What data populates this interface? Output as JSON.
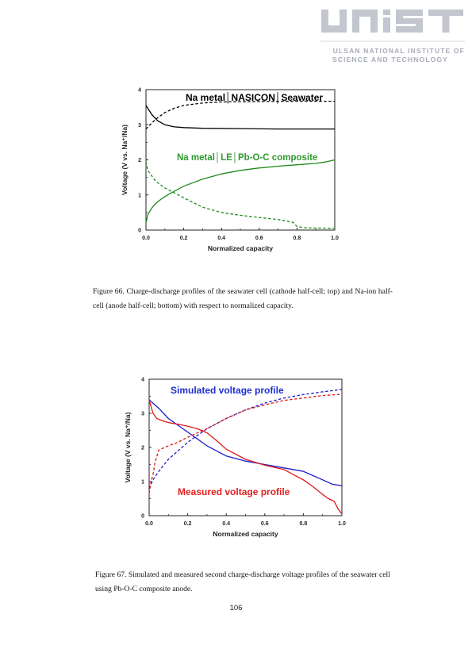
{
  "header": {
    "logo_text": "UNIST",
    "institute_line1": "ULSAN NATIONAL INSTITUTE OF",
    "institute_line2": "SCIENCE AND TECHNOLOGY",
    "logo_color": "#c3c6cf",
    "logo_text_color": "#a9adb8"
  },
  "figures": [
    {
      "caption": "Figure 66. Charge-discharge profiles of the seawater cell (cathode half-cell; top) and Na-ion half-cell (anode half-cell; bottom) with respect to normalized capacity."
    },
    {
      "caption": "Figure 67. Simulated and measured second charge-discharge voltage profiles of the seawater cell using Pb-O-C composite anode."
    }
  ],
  "page_number": "106",
  "chart_data": [
    {
      "type": "line",
      "xlabel": "Normalized capacity",
      "ylabel": "Voltage (V vs. Na⁺/Na)",
      "xlim": [
        0,
        1
      ],
      "ylim": [
        0,
        4
      ],
      "xticks": [
        "0.0",
        "0.2",
        "0.4",
        "0.6",
        "0.8",
        "1.0"
      ],
      "yticks": [
        "0",
        "1",
        "2",
        "3",
        "4"
      ],
      "grid": false,
      "annotations": [
        {
          "text": "Na metal│NASICON│Seawater",
          "color": "#000000"
        },
        {
          "text": "Na metal│LE│Pb-O-C composite",
          "color": "#2e9a2e"
        }
      ],
      "series": [
        {
          "color": "#000000",
          "dash": false,
          "x": [
            0.0,
            0.03,
            0.06,
            0.1,
            0.15,
            0.2,
            0.3,
            0.5,
            0.7,
            1.0
          ],
          "y": [
            3.55,
            3.3,
            3.12,
            3.0,
            2.94,
            2.92,
            2.9,
            2.89,
            2.88,
            2.88
          ]
        },
        {
          "color": "#000000",
          "dash": true,
          "x": [
            0.0,
            0.05,
            0.1,
            0.15,
            0.2,
            0.3,
            0.4,
            0.6,
            0.8,
            1.0
          ],
          "y": [
            2.88,
            3.15,
            3.35,
            3.47,
            3.55,
            3.62,
            3.65,
            3.66,
            3.67,
            3.67
          ]
        },
        {
          "color": "#1f8a1f",
          "dash": false,
          "x": [
            0.0,
            0.01,
            0.03,
            0.05,
            0.08,
            0.12,
            0.2,
            0.3,
            0.4,
            0.5,
            0.6,
            0.7,
            0.8,
            0.9,
            0.95,
            1.0
          ],
          "y": [
            0.2,
            0.45,
            0.62,
            0.75,
            0.88,
            1.02,
            1.25,
            1.45,
            1.6,
            1.7,
            1.77,
            1.82,
            1.86,
            1.9,
            1.94,
            2.0
          ]
        },
        {
          "color": "#1f8a1f",
          "dash": true,
          "x": [
            0.0,
            0.01,
            0.03,
            0.05,
            0.1,
            0.2,
            0.3,
            0.4,
            0.5,
            0.6,
            0.7,
            0.78,
            0.8,
            0.85,
            1.0
          ],
          "y": [
            1.95,
            1.7,
            1.55,
            1.4,
            1.2,
            0.92,
            0.65,
            0.5,
            0.42,
            0.36,
            0.3,
            0.22,
            0.1,
            0.06,
            0.05
          ]
        }
      ]
    },
    {
      "type": "line",
      "xlabel": "Normalized capacity",
      "ylabel": "Voltage (V vs. Na⁺/Na)",
      "xlim": [
        0,
        1
      ],
      "ylim": [
        0,
        4
      ],
      "xticks": [
        "0.0",
        "0.2",
        "0.4",
        "0.6",
        "0.8",
        "1.0"
      ],
      "yticks": [
        "0",
        "1",
        "2",
        "3",
        "4"
      ],
      "grid": false,
      "annotations": [
        {
          "text": "Simulated voltage profile",
          "color": "#1f2fd0"
        },
        {
          "text": "Measured voltage profile",
          "color": "#e22020"
        }
      ],
      "series": [
        {
          "color": "#1c1ccc",
          "dash": false,
          "x": [
            0.0,
            0.05,
            0.1,
            0.2,
            0.3,
            0.4,
            0.5,
            0.6,
            0.7,
            0.8,
            0.9,
            0.95,
            1.0
          ],
          "y": [
            3.4,
            3.15,
            2.85,
            2.45,
            2.05,
            1.75,
            1.6,
            1.5,
            1.4,
            1.3,
            1.05,
            0.92,
            0.88
          ]
        },
        {
          "color": "#1c1ccc",
          "dash": true,
          "x": [
            0.0,
            0.02,
            0.05,
            0.1,
            0.2,
            0.3,
            0.4,
            0.5,
            0.6,
            0.7,
            0.8,
            0.9,
            1.0
          ],
          "y": [
            0.8,
            1.05,
            1.3,
            1.65,
            2.15,
            2.55,
            2.85,
            3.1,
            3.3,
            3.45,
            3.55,
            3.63,
            3.7
          ]
        },
        {
          "color": "#e01818",
          "dash": false,
          "x": [
            0.0,
            0.01,
            0.02,
            0.04,
            0.07,
            0.1,
            0.15,
            0.2,
            0.25,
            0.3,
            0.35,
            0.4,
            0.5,
            0.6,
            0.7,
            0.8,
            0.85,
            0.9,
            0.93,
            0.96,
            0.98,
            1.0
          ],
          "y": [
            3.4,
            3.2,
            3.0,
            2.85,
            2.78,
            2.73,
            2.68,
            2.62,
            2.55,
            2.43,
            2.2,
            1.95,
            1.65,
            1.48,
            1.35,
            1.05,
            0.85,
            0.62,
            0.5,
            0.42,
            0.2,
            0.05
          ]
        },
        {
          "color": "#e01818",
          "dash": true,
          "x": [
            0.0,
            0.01,
            0.02,
            0.03,
            0.05,
            0.1,
            0.15,
            0.2,
            0.3,
            0.4,
            0.5,
            0.6,
            0.7,
            0.8,
            0.9,
            1.0
          ],
          "y": [
            0.65,
            1.0,
            1.2,
            1.55,
            1.92,
            2.05,
            2.15,
            2.3,
            2.55,
            2.85,
            3.1,
            3.25,
            3.38,
            3.45,
            3.52,
            3.56
          ]
        }
      ]
    }
  ]
}
